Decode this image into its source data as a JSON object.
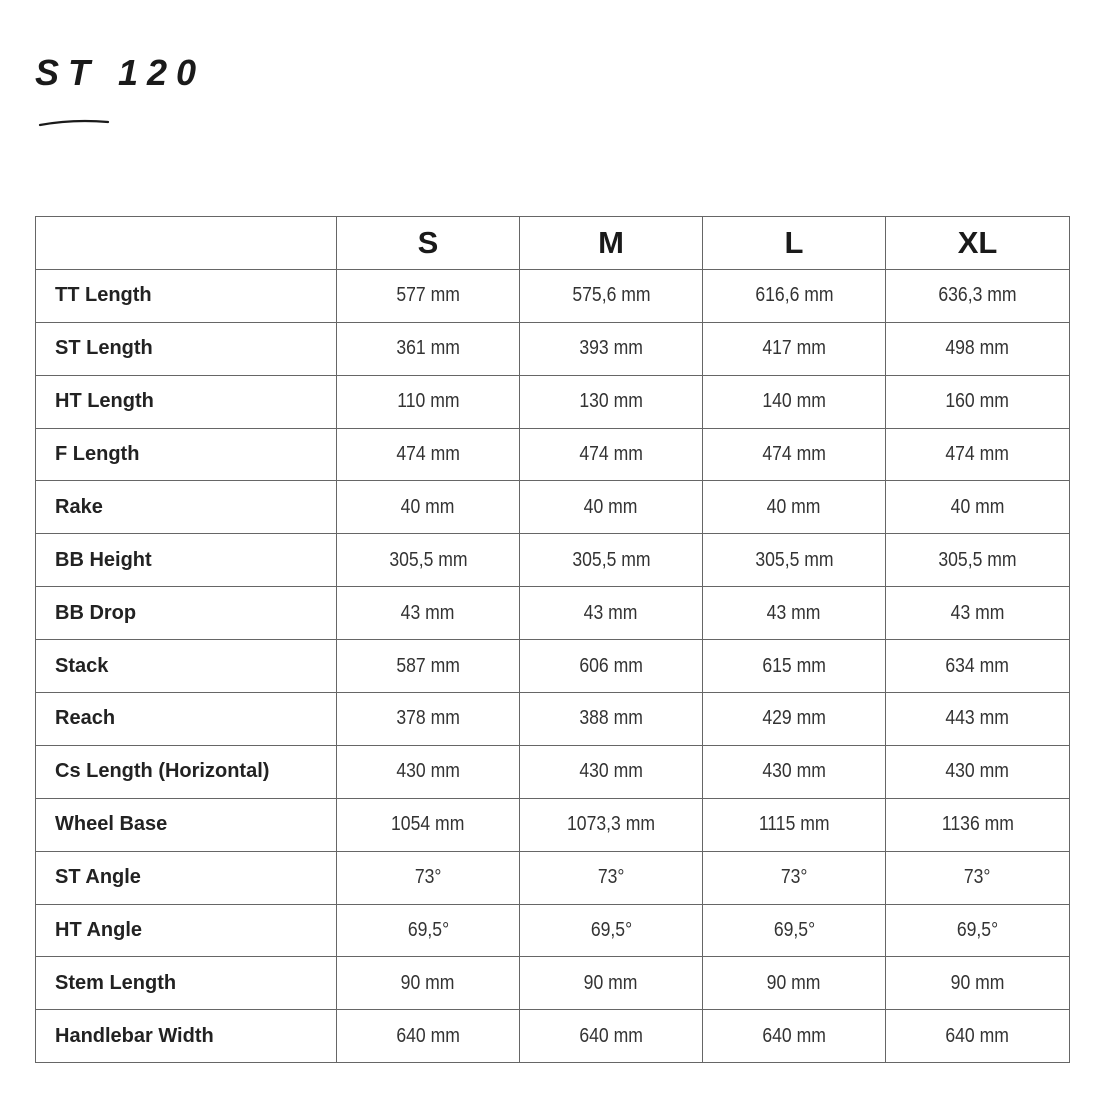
{
  "title": "ST 120",
  "table": {
    "headers": [
      "",
      "S",
      "M",
      "L",
      "XL"
    ],
    "rows": [
      {
        "label": "TT Length",
        "values": [
          "577 mm",
          "575,6 mm",
          "616,6 mm",
          "636,3 mm"
        ]
      },
      {
        "label": "ST Length",
        "values": [
          "361 mm",
          "393 mm",
          "417 mm",
          "498 mm"
        ]
      },
      {
        "label": "HT Length",
        "values": [
          "110 mm",
          "130 mm",
          "140 mm",
          "160 mm"
        ]
      },
      {
        "label": "F Length",
        "values": [
          "474 mm",
          "474 mm",
          "474 mm",
          "474 mm"
        ]
      },
      {
        "label": "Rake",
        "values": [
          "40 mm",
          "40 mm",
          "40 mm",
          "40 mm"
        ]
      },
      {
        "label": "BB Height",
        "values": [
          "305,5 mm",
          "305,5 mm",
          "305,5 mm",
          "305,5 mm"
        ]
      },
      {
        "label": "BB Drop",
        "values": [
          "43 mm",
          "43 mm",
          "43 mm",
          "43 mm"
        ]
      },
      {
        "label": "Stack",
        "values": [
          "587 mm",
          "606 mm",
          "615 mm",
          "634 mm"
        ]
      },
      {
        "label": "Reach",
        "values": [
          "378 mm",
          "388 mm",
          "429 mm",
          "443 mm"
        ]
      },
      {
        "label": "Cs Length (Horizontal)",
        "values": [
          "430 mm",
          "430 mm",
          "430 mm",
          "430 mm"
        ]
      },
      {
        "label": "Wheel Base",
        "values": [
          "1054 mm",
          "1073,3 mm",
          "1115 mm",
          "1136 mm"
        ]
      },
      {
        "label": "ST Angle",
        "values": [
          "73°",
          "73°",
          "73°",
          "73°"
        ]
      },
      {
        "label": "HT Angle",
        "values": [
          "69,5°",
          "69,5°",
          "69,5°",
          "69,5°"
        ]
      },
      {
        "label": "Stem Length",
        "values": [
          "90 mm",
          "90 mm",
          "90 mm",
          "90 mm"
        ]
      },
      {
        "label": "Handlebar Width",
        "values": [
          "640 mm",
          "640 mm",
          "640 mm",
          "640 mm"
        ]
      }
    ]
  }
}
